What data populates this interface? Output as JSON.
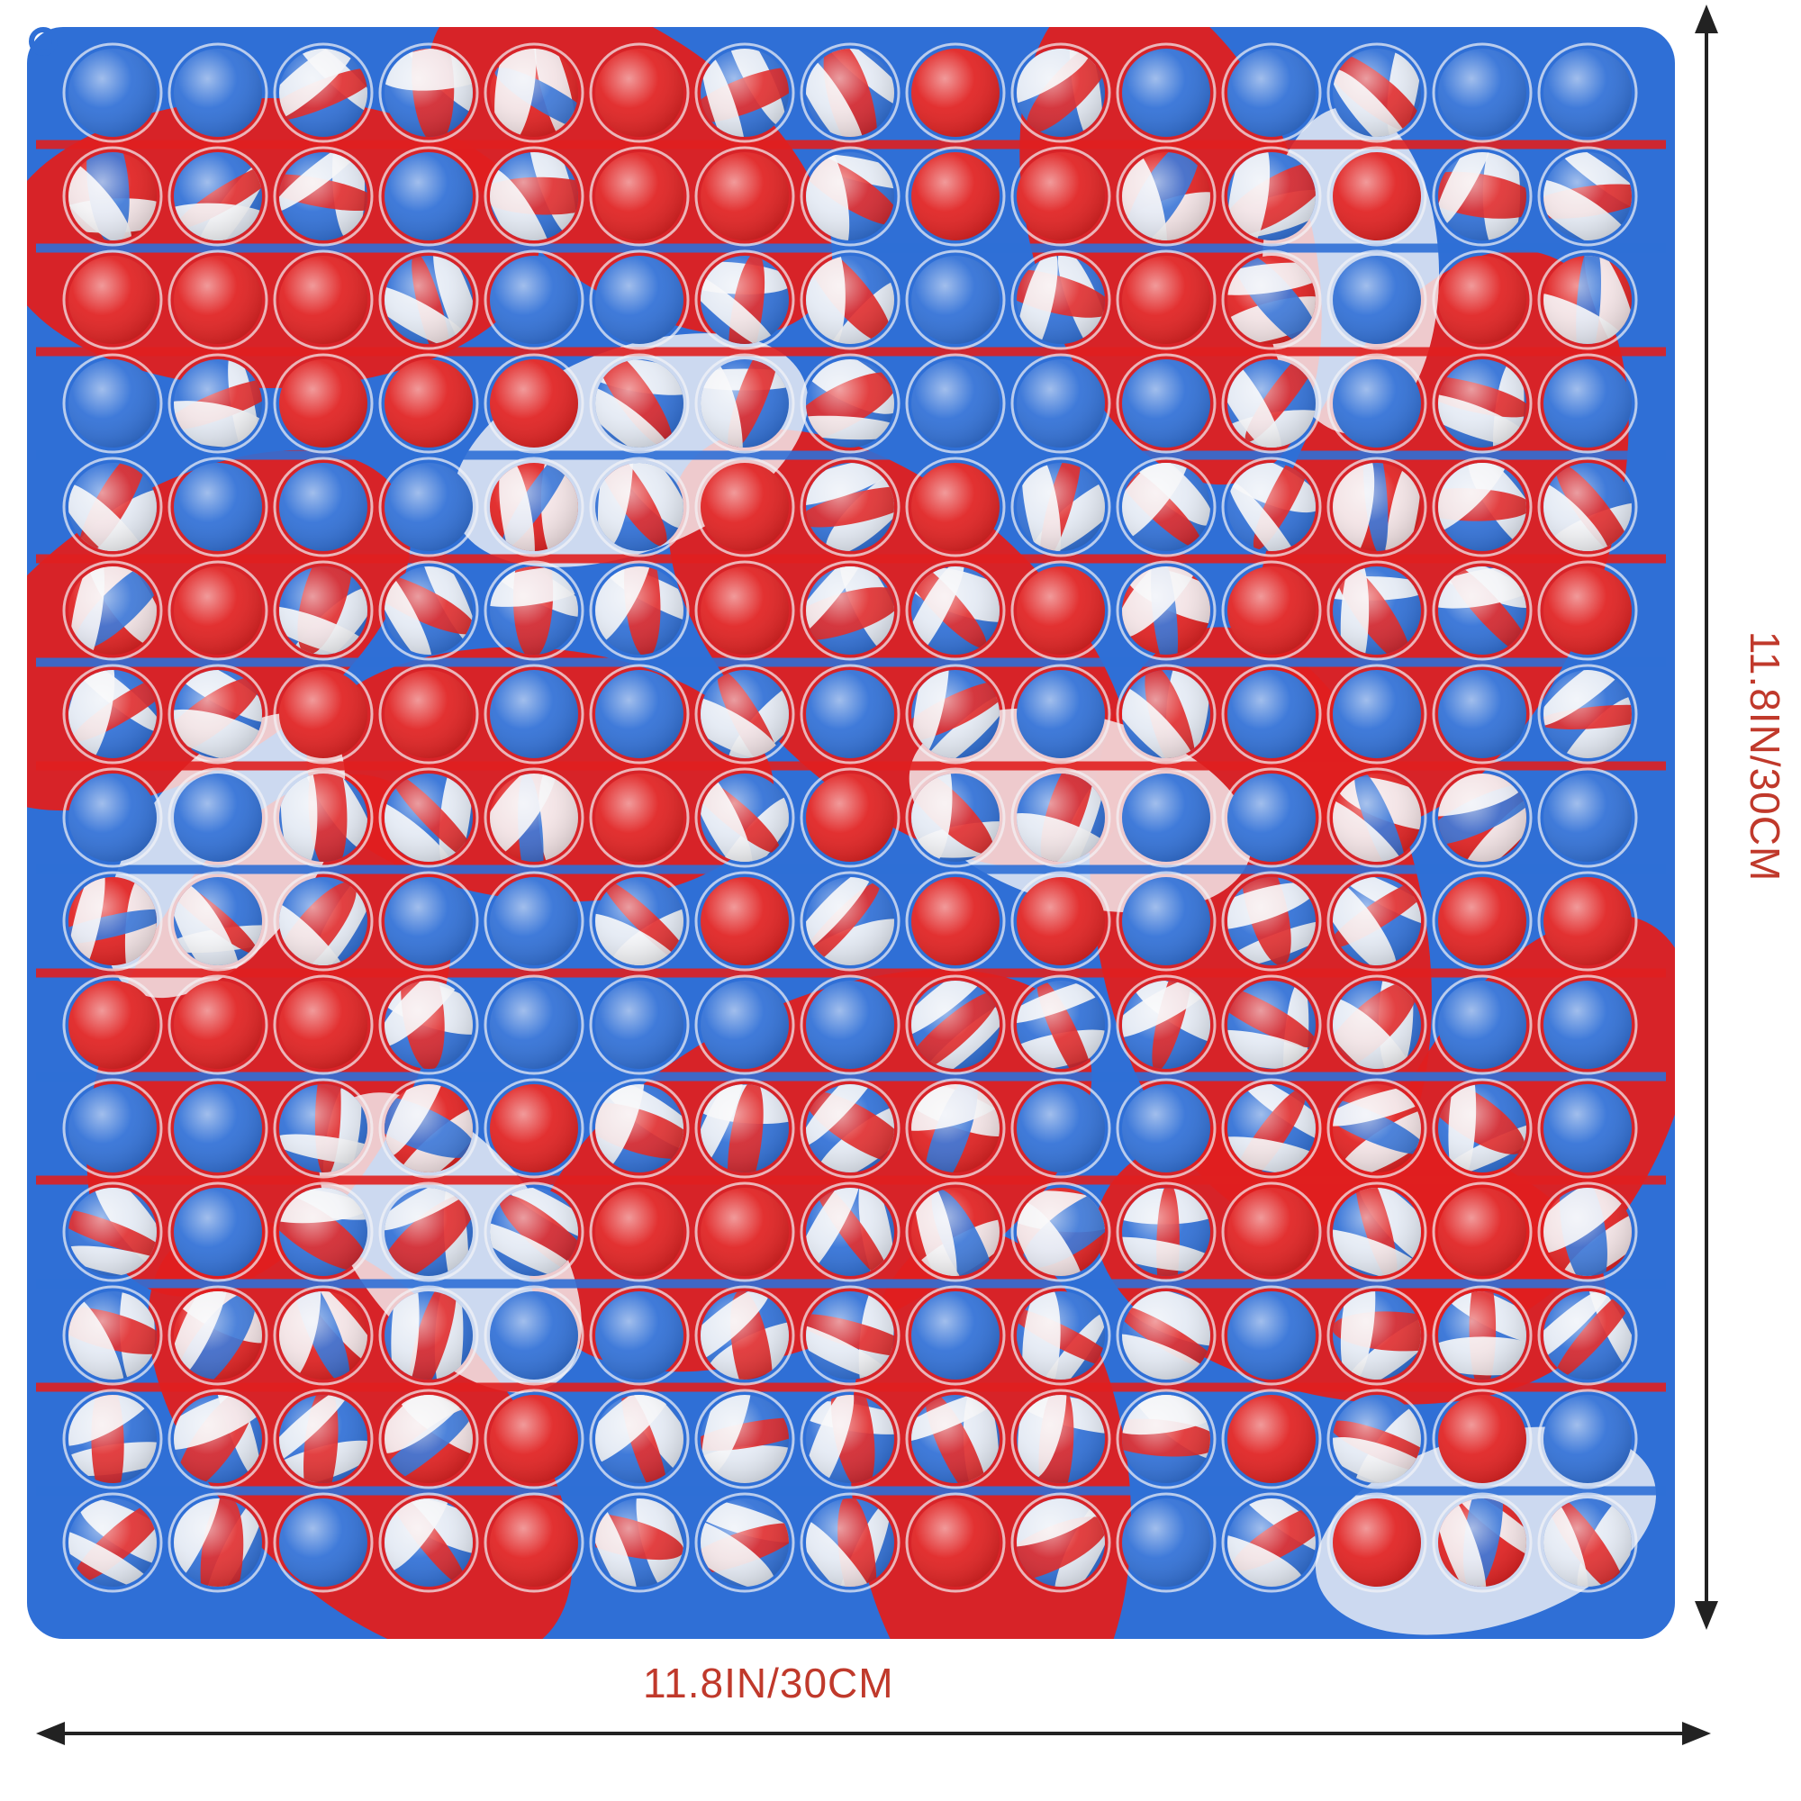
{
  "product": {
    "name": "square push bubble fidget toy",
    "grid_rows": 15,
    "grid_cols": 15,
    "colors": {
      "red": "#e01f1f",
      "blue": "#2f6fd6",
      "white": "#f4f4f6",
      "label": "#c0392b",
      "arrow": "#222222"
    }
  },
  "dimensions": {
    "width_label": "11.8IN/30CM",
    "height_label": "11.8IN/30CM"
  }
}
